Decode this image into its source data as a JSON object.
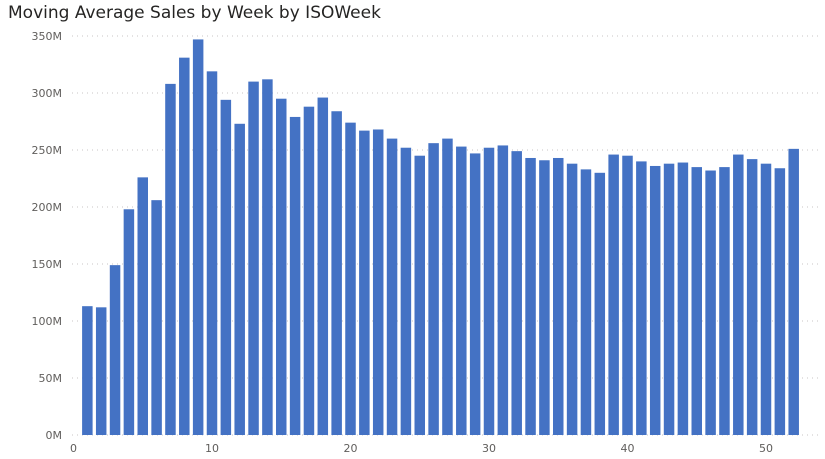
{
  "chart_data": {
    "type": "bar",
    "title": "Moving Average Sales by Week by ISOWeek",
    "xlabel": "",
    "ylabel": "",
    "x": [
      1,
      2,
      3,
      4,
      5,
      6,
      7,
      8,
      9,
      10,
      11,
      12,
      13,
      14,
      15,
      16,
      17,
      18,
      19,
      20,
      21,
      22,
      23,
      24,
      25,
      26,
      27,
      28,
      29,
      30,
      31,
      32,
      33,
      34,
      35,
      36,
      37,
      38,
      39,
      40,
      41,
      42,
      43,
      44,
      45,
      46,
      47,
      48,
      49,
      50,
      51,
      52
    ],
    "values": [
      113,
      112,
      149,
      198,
      226,
      206,
      308,
      331,
      347,
      319,
      294,
      273,
      310,
      312,
      295,
      279,
      288,
      296,
      284,
      274,
      267,
      268,
      260,
      252,
      245,
      256,
      260,
      253,
      247,
      252,
      254,
      249,
      243,
      241,
      243,
      238,
      233,
      230,
      246,
      245,
      240,
      236,
      238,
      239,
      235,
      232,
      235,
      246,
      242,
      238,
      234,
      251
    ],
    "unit_suffix": "M",
    "ylim": [
      0,
      350
    ],
    "y_ticks": [
      "0M",
      "50M",
      "100M",
      "150M",
      "200M",
      "250M",
      "300M",
      "350M"
    ],
    "x_ticks": [
      "0",
      "10",
      "20",
      "30",
      "40",
      "50"
    ],
    "grid": true,
    "bar_color": "#4472c4"
  }
}
